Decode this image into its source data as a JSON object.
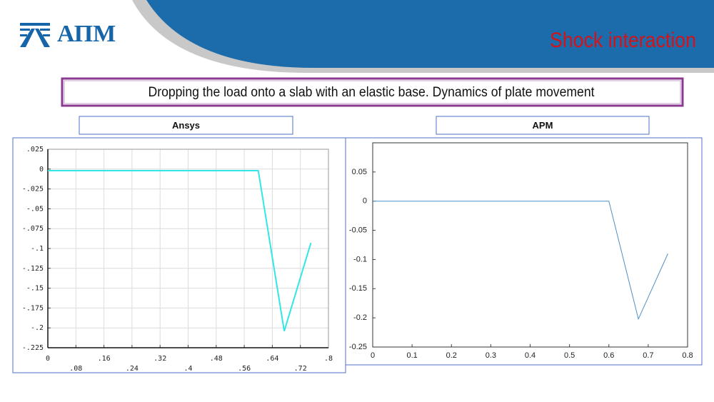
{
  "header": {
    "logo": "АПМ",
    "title": "Shock interaction"
  },
  "subtitle": "Dropping the load onto a slab with an elastic base. Dynamics of plate movement",
  "chart_data": [
    {
      "type": "line",
      "title": "Ansys",
      "grid": true,
      "x": [
        0,
        0.6,
        0.674,
        0.75
      ],
      "series": [
        {
          "name": "Ansys",
          "color": "#33e6e6",
          "values": [
            -0.002,
            -0.002,
            -0.204,
            -0.093
          ]
        }
      ],
      "xlim": [
        0,
        0.8
      ],
      "xticks": [
        0,
        {
          "value": 0.08,
          "label": ".08"
        },
        {
          "value": 0.16,
          "label": ".16"
        },
        {
          "value": 0.24,
          "label": ".24"
        },
        {
          "value": 0.32,
          "label": ".32"
        },
        {
          "value": 0.4,
          "label": ".4"
        },
        {
          "value": 0.48,
          "label": ".48"
        },
        {
          "value": 0.56,
          "label": ".56"
        },
        {
          "value": 0.64,
          "label": ".64"
        },
        {
          "value": 0.72,
          "label": ".72"
        },
        {
          "value": 0.8,
          "label": ".8"
        }
      ],
      "ylim": [
        -0.225,
        0.025
      ],
      "yticks": [
        {
          "value": 0.025,
          "label": ".025"
        },
        0,
        {
          "value": -0.025,
          "label": "-.025"
        },
        {
          "value": -0.05,
          "label": "-.05"
        },
        {
          "value": -0.075,
          "label": "-.075"
        },
        {
          "value": -0.1,
          "label": "-.1"
        },
        {
          "value": -0.125,
          "label": "-.125"
        },
        {
          "value": -0.15,
          "label": "-.15"
        },
        {
          "value": -0.175,
          "label": "-.175"
        },
        {
          "value": -0.2,
          "label": "-.2"
        },
        {
          "value": -0.225,
          "label": "-.225"
        }
      ]
    },
    {
      "type": "line",
      "title": "APM",
      "grid": false,
      "x": [
        0,
        0.6,
        0.675,
        0.75
      ],
      "series": [
        {
          "name": "APM",
          "color": "#4f8fc8",
          "values": [
            0,
            0,
            -0.202,
            -0.09
          ]
        }
      ],
      "xlim": [
        0,
        0.8
      ],
      "xticks": [
        0,
        0.1,
        0.2,
        0.3,
        0.4,
        0.5,
        0.6,
        0.7,
        0.8
      ],
      "ylim": [
        -0.25,
        0.1
      ],
      "yticks": [
        0.05,
        0,
        -0.05,
        -0.1,
        -0.15,
        -0.2,
        -0.25
      ]
    }
  ]
}
